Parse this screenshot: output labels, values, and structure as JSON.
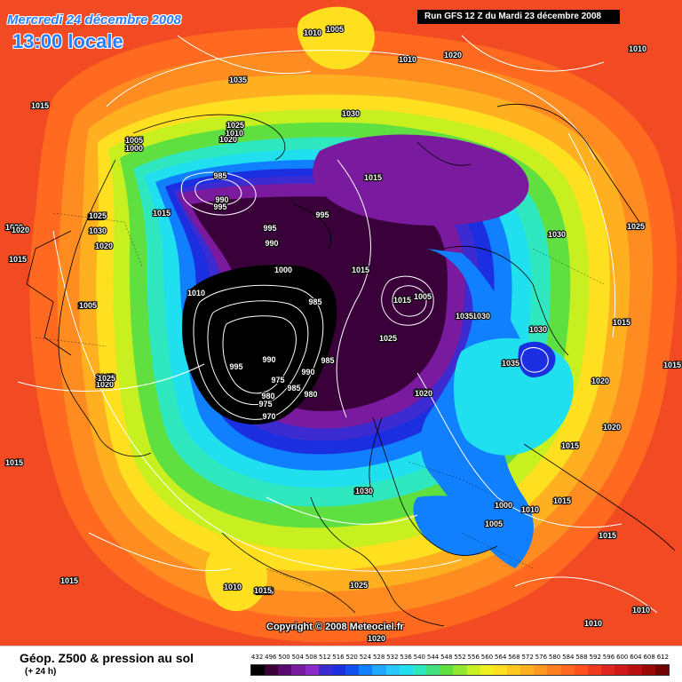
{
  "header": {
    "date_text": "Mercredi 24 décembre 2008",
    "time_text": "13:00 locale",
    "run_text": "Run GFS 12 Z du Mardi 23 décembre 2008"
  },
  "copyright": "Copyright © 2008 Meteociel.fr",
  "footer": {
    "title": "Géop. Z500 & pression au sol",
    "subtitle": "(+ 24 h)"
  },
  "scale": {
    "values": [
      "432",
      "496",
      "500",
      "504",
      "508",
      "512",
      "516",
      "520",
      "524",
      "528",
      "532",
      "536",
      "540",
      "544",
      "548",
      "552",
      "556",
      "560",
      "564",
      "568",
      "572",
      "576",
      "580",
      "584",
      "588",
      "592",
      "596",
      "600",
      "604",
      "608",
      "612"
    ],
    "colors": [
      "#000000",
      "#3a003a",
      "#5a0a6e",
      "#7a1a9e",
      "#8a2ac8",
      "#3b2bd0",
      "#1b2fe0",
      "#0f50ee",
      "#1080ff",
      "#20a8ff",
      "#28c8ff",
      "#20e0f0",
      "#30e8c0",
      "#40e080",
      "#60e040",
      "#90e830",
      "#c8f020",
      "#f0f020",
      "#ffe020",
      "#ffc820",
      "#ffb020",
      "#ff9820",
      "#ff8020",
      "#ff6820",
      "#ff5020",
      "#f03a20",
      "#e02420",
      "#d01818",
      "#b81010",
      "#9a0808",
      "#700404"
    ]
  },
  "pressure_labels": [
    {
      "text": "1005"
    },
    {
      "text": "1010"
    },
    {
      "text": "1010"
    },
    {
      "text": "1020"
    },
    {
      "text": "1010"
    },
    {
      "text": "1035"
    },
    {
      "text": "1015"
    },
    {
      "text": "1030"
    },
    {
      "text": "1025"
    },
    {
      "text": "1020"
    },
    {
      "text": "1005"
    },
    {
      "text": "1000"
    },
    {
      "text": "1010"
    },
    {
      "text": "985"
    },
    {
      "text": "990"
    },
    {
      "text": "995"
    },
    {
      "text": "995"
    },
    {
      "text": "1015"
    },
    {
      "text": "1010"
    },
    {
      "text": "1015"
    },
    {
      "text": "995"
    },
    {
      "text": "990"
    },
    {
      "text": "1025"
    },
    {
      "text": "1030"
    },
    {
      "text": "1020"
    },
    {
      "text": "1020"
    },
    {
      "text": "1015"
    },
    {
      "text": "1015"
    },
    {
      "text": "1000"
    },
    {
      "text": "1015"
    },
    {
      "text": "1005"
    },
    {
      "text": "1010"
    },
    {
      "text": "1005"
    },
    {
      "text": "985"
    },
    {
      "text": "985"
    },
    {
      "text": "990"
    },
    {
      "text": "975"
    },
    {
      "text": "980"
    },
    {
      "text": "985"
    },
    {
      "text": "980"
    },
    {
      "text": "975"
    },
    {
      "text": "970"
    },
    {
      "text": "995"
    },
    {
      "text": "990"
    },
    {
      "text": "1025"
    },
    {
      "text": "1020"
    },
    {
      "text": "1030"
    },
    {
      "text": "1035"
    },
    {
      "text": "1025"
    },
    {
      "text": "1030"
    },
    {
      "text": "1035"
    },
    {
      "text": "1025"
    },
    {
      "text": "1015"
    },
    {
      "text": "1020"
    },
    {
      "text": "1020"
    },
    {
      "text": "1015"
    },
    {
      "text": "1010"
    },
    {
      "text": "1000"
    },
    {
      "text": "1005"
    },
    {
      "text": "1015"
    },
    {
      "text": "1015"
    },
    {
      "text": "1030"
    },
    {
      "text": "1015"
    },
    {
      "text": "1010"
    },
    {
      "text": "1015"
    },
    {
      "text": "1025"
    },
    {
      "text": "1020"
    },
    {
      "text": "1010"
    },
    {
      "text": "1010"
    },
    {
      "text": "1015"
    },
    {
      "text": "1020"
    },
    {
      "text": "1020"
    },
    {
      "text": "1015"
    },
    {
      "text": "1005"
    },
    {
      "text": "1030"
    },
    {
      "text": "1035"
    },
    {
      "text": "1030"
    },
    {
      "text": "1020"
    },
    {
      "text": "1025"
    },
    {
      "text": "1015"
    }
  ]
}
